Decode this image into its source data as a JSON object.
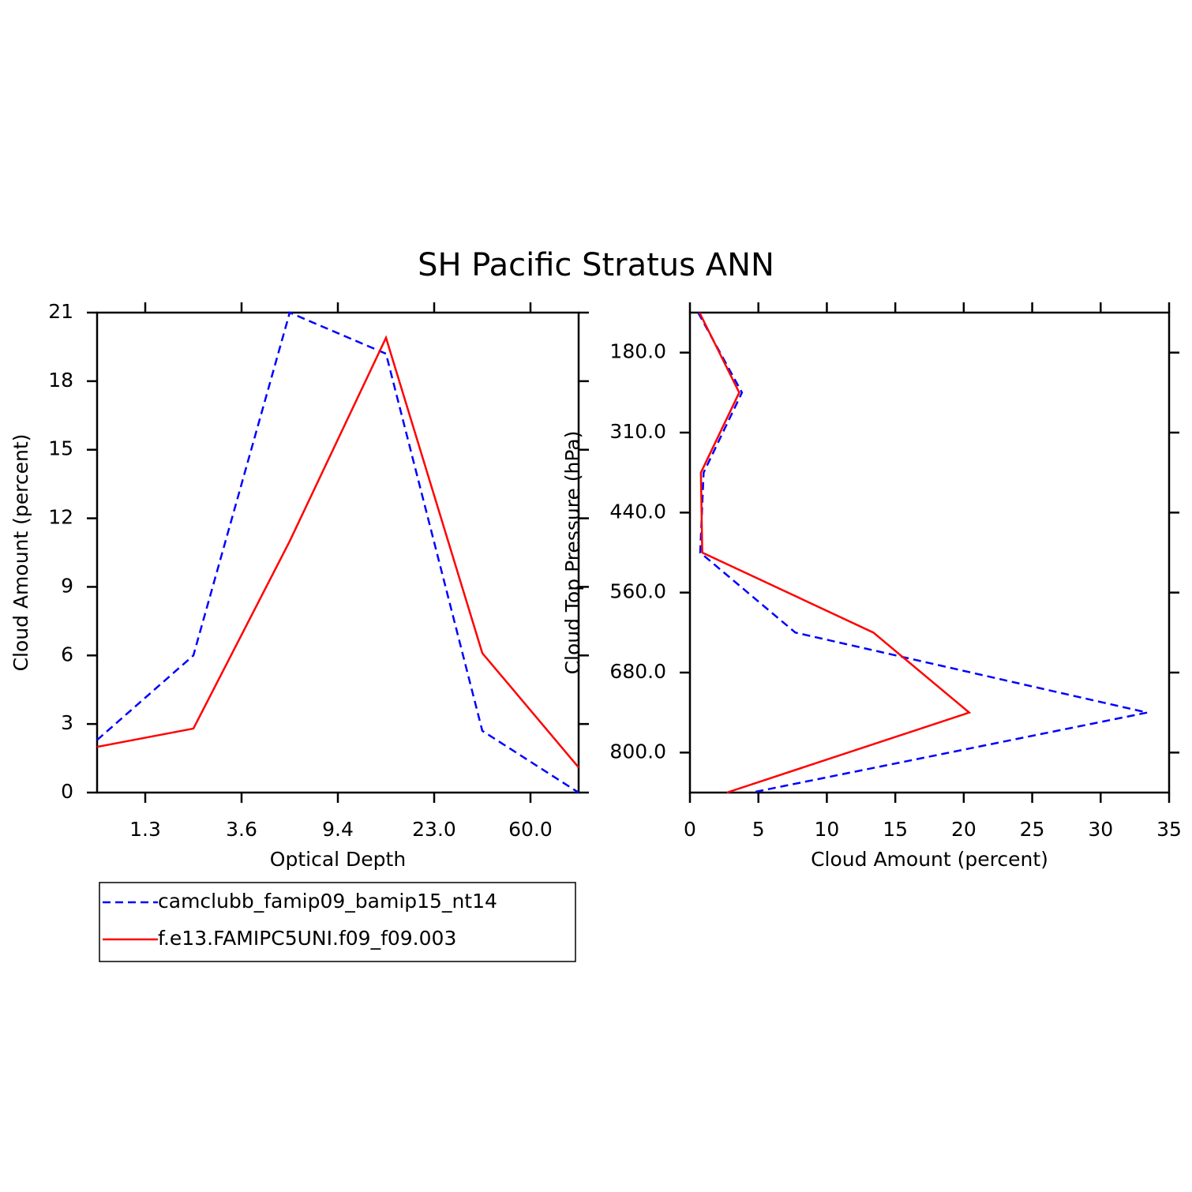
{
  "chart_data": [
    {
      "type": "line",
      "title": "SH Pacific Stratus ANN",
      "xlabel": "Optical Depth",
      "ylabel": "Cloud Amount (percent)",
      "xlim": [
        0,
        5
      ],
      "xticks": [
        {
          "value": 0.5,
          "label": "1.3"
        },
        {
          "value": 1.5,
          "label": "3.6"
        },
        {
          "value": 2.5,
          "label": "9.4"
        },
        {
          "value": 3.5,
          "label": "23.0"
        },
        {
          "value": 4.5,
          "label": "60.0"
        }
      ],
      "ylim": [
        0,
        21
      ],
      "yticks": [
        0,
        3,
        6,
        9,
        12,
        15,
        18,
        21
      ],
      "legend": "below",
      "series": [
        {
          "name": "camclubb_famip09_bamip15_nt14",
          "color": "#0000ff",
          "linestyle": "dashed",
          "values": [
            2.3,
            6.0,
            21.0,
            19.2,
            2.7,
            0
          ]
        },
        {
          "name": "f.e13.FAMIPC5UNI.f09_f09.003",
          "color": "#ff0000",
          "linestyle": "solid",
          "values": [
            2.0,
            2.8,
            11.0,
            19.9,
            6.1,
            1.1
          ]
        }
      ]
    },
    {
      "type": "line",
      "orientation": "horizontal",
      "xlabel": "Cloud Amount (percent)",
      "ylabel": "Cloud Top Pressure (hPa)",
      "xlim": [
        0,
        35
      ],
      "xticks": [
        0,
        5,
        10,
        15,
        20,
        25,
        30,
        35
      ],
      "ylim": [
        6,
        0
      ],
      "yticks": [
        {
          "value": 0.5,
          "label": "180.0"
        },
        {
          "value": 1.5,
          "label": "310.0"
        },
        {
          "value": 2.5,
          "label": "440.0"
        },
        {
          "value": 3.5,
          "label": "560.0"
        },
        {
          "value": 4.5,
          "label": "680.0"
        },
        {
          "value": 5.5,
          "label": "800.0"
        }
      ],
      "series": [
        {
          "name": "camclubb_famip09_bamip15_nt14",
          "color": "#0000ff",
          "linestyle": "dashed",
          "values": [
            0.6,
            3.8,
            1.0,
            0.75,
            7.7,
            33.4,
            4.5
          ]
        },
        {
          "name": "f.e13.FAMIPC5UNI.f09_f09.003",
          "color": "#ff0000",
          "linestyle": "solid",
          "values": [
            0.7,
            3.6,
            0.8,
            0.9,
            13.4,
            20.4,
            2.7
          ]
        }
      ]
    }
  ]
}
